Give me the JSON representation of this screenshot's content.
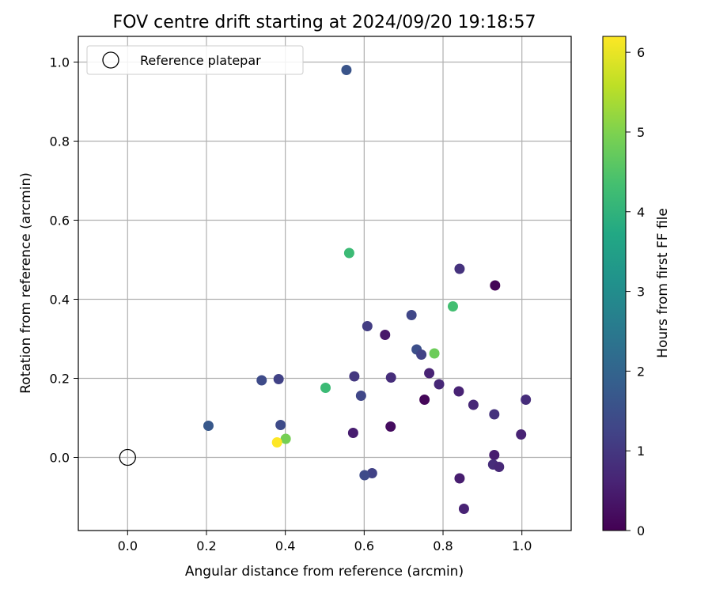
{
  "chart_data": {
    "type": "scatter",
    "title": "FOV centre drift starting at 2024/09/20 19:18:57",
    "xlabel": "Angular distance from reference (arcmin)",
    "ylabel": "Rotation from reference (arcmin)",
    "xlim": [
      -0.125,
      1.125
    ],
    "ylim": [
      -0.185,
      1.065
    ],
    "xticks": [
      0.0,
      0.2,
      0.4,
      0.6,
      0.8,
      1.0
    ],
    "xtick_labels": [
      "0.0",
      "0.2",
      "0.4",
      "0.6",
      "0.8",
      "1.0"
    ],
    "yticks": [
      0.0,
      0.2,
      0.4,
      0.6,
      0.8,
      1.0
    ],
    "ytick_labels": [
      "0.0",
      "0.2",
      "0.4",
      "0.6",
      "0.8",
      "1.0"
    ],
    "grid": true,
    "legend": {
      "placement": "top-left",
      "entries": [
        "Reference platepar"
      ]
    },
    "reference_point": {
      "x": 0.0,
      "y": 0.0,
      "label": "Reference platepar"
    },
    "colorbar": {
      "label": "Hours from first FF file",
      "colormap": "viridis",
      "range": [
        0,
        6.2
      ],
      "ticks": [
        0,
        1,
        2,
        3,
        4,
        5,
        6
      ],
      "tick_labels": [
        "0",
        "1",
        "2",
        "3",
        "4",
        "5",
        "6"
      ]
    },
    "points": [
      {
        "x": 0.555,
        "y": 0.98,
        "c": 1.6
      },
      {
        "x": 0.562,
        "y": 0.517,
        "c": 4.2
      },
      {
        "x": 0.842,
        "y": 0.477,
        "c": 0.9
      },
      {
        "x": 0.932,
        "y": 0.435,
        "c": 0.05
      },
      {
        "x": 0.825,
        "y": 0.382,
        "c": 4.3
      },
      {
        "x": 0.72,
        "y": 0.36,
        "c": 1.3
      },
      {
        "x": 0.608,
        "y": 0.332,
        "c": 1.1
      },
      {
        "x": 0.653,
        "y": 0.31,
        "c": 0.4
      },
      {
        "x": 0.733,
        "y": 0.273,
        "c": 1.5
      },
      {
        "x": 0.745,
        "y": 0.26,
        "c": 1.2
      },
      {
        "x": 0.778,
        "y": 0.263,
        "c": 4.8
      },
      {
        "x": 0.765,
        "y": 0.213,
        "c": 0.6
      },
      {
        "x": 0.575,
        "y": 0.205,
        "c": 1.0
      },
      {
        "x": 0.668,
        "y": 0.202,
        "c": 0.8
      },
      {
        "x": 0.34,
        "y": 0.195,
        "c": 1.4
      },
      {
        "x": 0.383,
        "y": 0.198,
        "c": 1.2
      },
      {
        "x": 0.79,
        "y": 0.185,
        "c": 0.7
      },
      {
        "x": 0.502,
        "y": 0.176,
        "c": 4.2
      },
      {
        "x": 0.84,
        "y": 0.167,
        "c": 0.6
      },
      {
        "x": 0.592,
        "y": 0.156,
        "c": 1.3
      },
      {
        "x": 0.753,
        "y": 0.146,
        "c": 0.1
      },
      {
        "x": 1.01,
        "y": 0.146,
        "c": 0.8
      },
      {
        "x": 0.877,
        "y": 0.133,
        "c": 0.7
      },
      {
        "x": 0.93,
        "y": 0.109,
        "c": 0.9
      },
      {
        "x": 0.205,
        "y": 0.08,
        "c": 1.7
      },
      {
        "x": 0.388,
        "y": 0.082,
        "c": 1.4
      },
      {
        "x": 0.667,
        "y": 0.078,
        "c": 0.2
      },
      {
        "x": 0.572,
        "y": 0.062,
        "c": 0.5
      },
      {
        "x": 0.998,
        "y": 0.058,
        "c": 0.6
      },
      {
        "x": 0.401,
        "y": 0.047,
        "c": 4.9
      },
      {
        "x": 0.379,
        "y": 0.038,
        "c": 6.2
      },
      {
        "x": 0.93,
        "y": 0.006,
        "c": 0.5
      },
      {
        "x": 0.927,
        "y": -0.018,
        "c": 0.8
      },
      {
        "x": 0.942,
        "y": -0.024,
        "c": 0.7
      },
      {
        "x": 0.62,
        "y": -0.04,
        "c": 1.2
      },
      {
        "x": 0.601,
        "y": -0.045,
        "c": 1.4
      },
      {
        "x": 0.842,
        "y": -0.053,
        "c": 0.5
      },
      {
        "x": 0.853,
        "y": -0.13,
        "c": 0.6
      }
    ]
  }
}
